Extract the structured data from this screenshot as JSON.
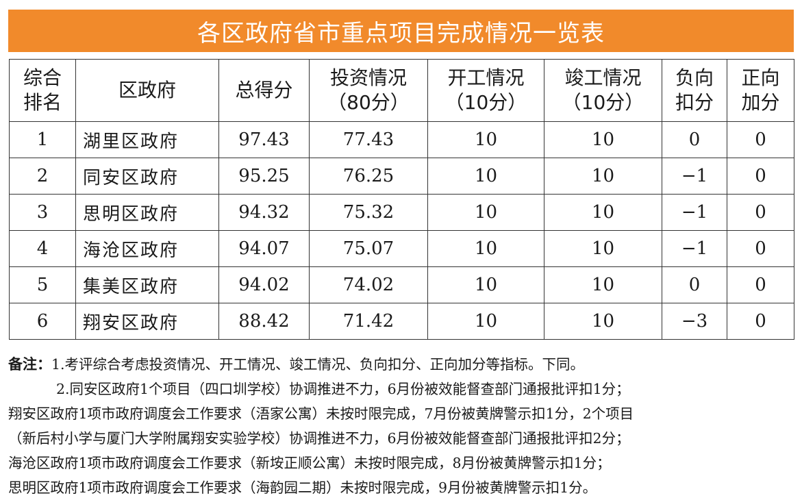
{
  "title": "各区政府省市重点项目完成情况一览表",
  "columns": [
    "综合\n排名",
    "区政府",
    "总得分",
    "投资情况\n（80分）",
    "开工情况\n（10分）",
    "竣工情况\n（10分）",
    "负向\n扣分",
    "正向\n加分"
  ],
  "rows": [
    [
      "1",
      "湖里区政府",
      "97.43",
      "77.43",
      "10",
      "10",
      "0",
      "0"
    ],
    [
      "2",
      "同安区政府",
      "95.25",
      "76.25",
      "10",
      "10",
      "−1",
      "0"
    ],
    [
      "3",
      "思明区政府",
      "94.32",
      "75.32",
      "10",
      "10",
      "−1",
      "0"
    ],
    [
      "4",
      "海沧区政府",
      "94.07",
      "75.07",
      "10",
      "10",
      "−1",
      "0"
    ],
    [
      "5",
      "集美区政府",
      "94.02",
      "74.02",
      "10",
      "10",
      "0",
      "0"
    ],
    [
      "6",
      "翔安区政府",
      "88.42",
      "71.42",
      "10",
      "10",
      "−3",
      "0"
    ]
  ],
  "notes": {
    "label": "备注：",
    "line1": "1.考评综合考虑投资情况、开工情况、竣工情况、负向扣分、正向加分等指标。下同。",
    "line2": "2.同安区政府1个项目（四口圳学校）协调推进不力，6月份被效能督查部门通报批评扣1分；",
    "line3": "翔安区政府1项市政府调度会工作要求（浯家公寓）未按时限完成，7月份被黄牌警示扣1分，2个项目",
    "line4": "（新后村小学与厦门大学附属翔安实验学校）协调推进不力，6月份被效能督查部门通报批评扣2分；",
    "line5": "海沧区政府1项市政府调度会工作要求（新垵正顺公寓）未按时限完成，8月份被黄牌警示扣1分；",
    "line6": "思明区政府1项市政府调度会工作要求（海韵园二期）未按时限完成，9月份被黄牌警示扣1分。"
  }
}
